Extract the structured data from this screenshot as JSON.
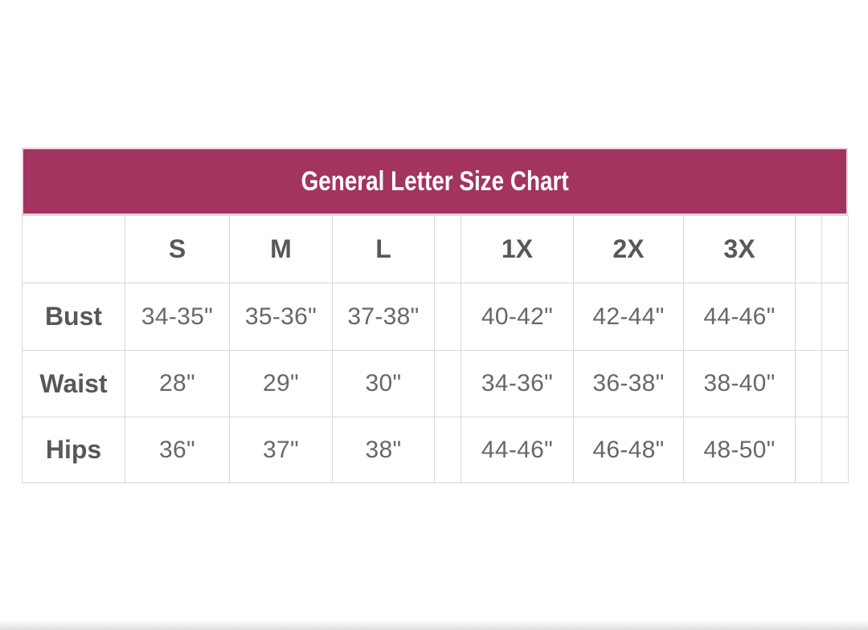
{
  "colors": {
    "band_background": "#a3335f",
    "band_outline": "#ecd5df",
    "band_text": "#ffffff",
    "grid_border": "#d8d8d8",
    "label_text": "#58585a",
    "value_text": "#686868"
  },
  "chart_data": {
    "type": "table",
    "title": "General Letter Size Chart",
    "columns": [
      "",
      "S",
      "M",
      "L",
      "",
      "1X",
      "2X",
      "3X",
      "",
      ""
    ],
    "rows": [
      {
        "label": "Bust",
        "values": [
          "34-35\"",
          "35-36\"",
          "37-38\"",
          "",
          "40-42\"",
          "42-44\"",
          "44-46\"",
          "",
          ""
        ]
      },
      {
        "label": "Waist",
        "values": [
          "28\"",
          "29\"",
          "30\"",
          "",
          "34-36\"",
          "36-38\"",
          "38-40\"",
          "",
          ""
        ]
      },
      {
        "label": "Hips",
        "values": [
          "36\"",
          "37\"",
          "38\"",
          "",
          "44-46\"",
          "46-48\"",
          "48-50\"",
          "",
          ""
        ]
      }
    ]
  }
}
